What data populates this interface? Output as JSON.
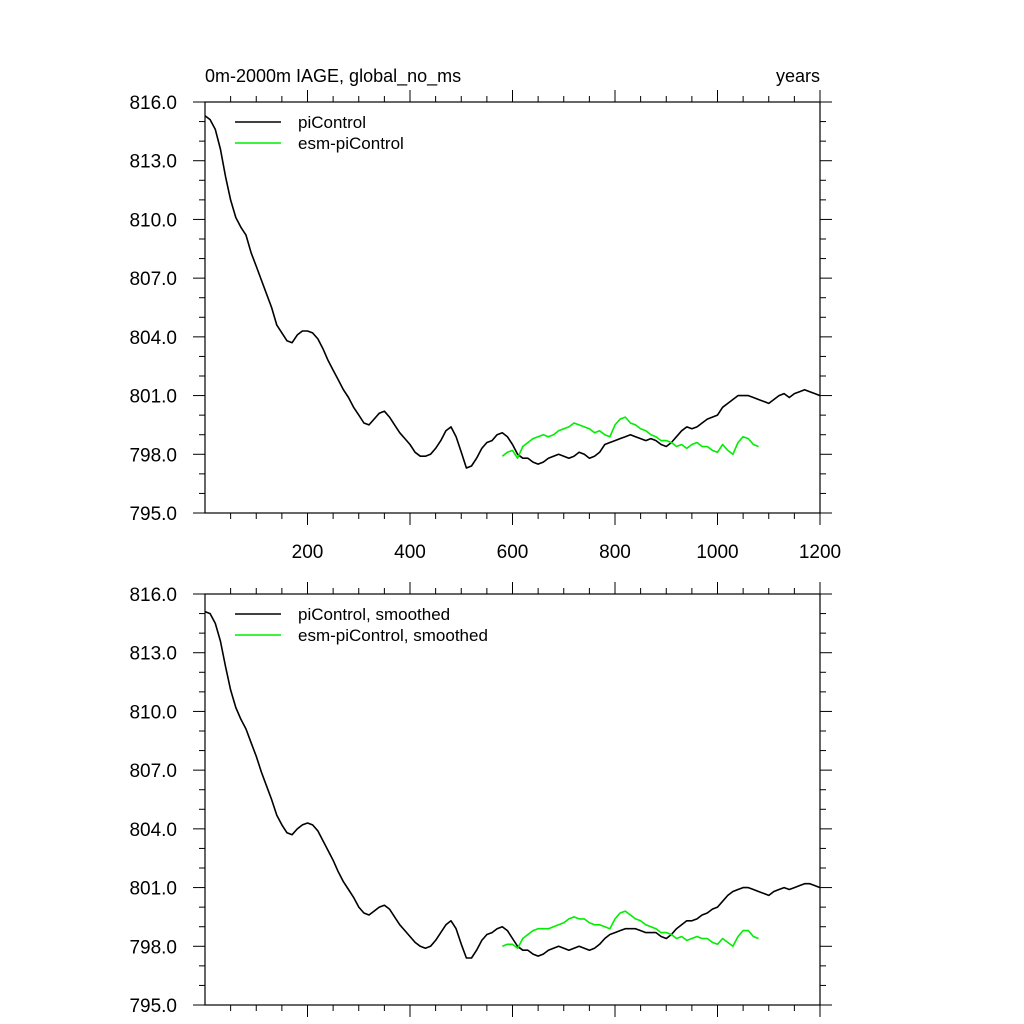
{
  "chart_data": [
    {
      "type": "line",
      "title_left": "0m-2000m IAGE, global_no_ms",
      "title_right": "years",
      "xlabel": "",
      "ylabel": "",
      "xlim": [
        0,
        1200
      ],
      "ylim": [
        795.0,
        816.0
      ],
      "yticks": [
        "816.0",
        "813.0",
        "810.0",
        "807.0",
        "804.0",
        "801.0",
        "798.0",
        "795.0"
      ],
      "xticks": [
        "200",
        "400",
        "600",
        "800",
        "1000",
        "1200"
      ],
      "legend_position": "top-left",
      "series": [
        {
          "name": "piControl",
          "color": "#000000",
          "x": [
            0,
            10,
            20,
            30,
            40,
            50,
            60,
            70,
            80,
            90,
            100,
            110,
            120,
            130,
            140,
            150,
            160,
            170,
            180,
            190,
            200,
            210,
            220,
            230,
            240,
            250,
            260,
            270,
            280,
            290,
            300,
            310,
            320,
            330,
            340,
            350,
            360,
            370,
            380,
            390,
            400,
            410,
            420,
            430,
            440,
            450,
            460,
            470,
            480,
            490,
            500,
            510,
            520,
            530,
            540,
            550,
            560,
            570,
            580,
            590,
            600,
            610,
            620,
            630,
            640,
            650,
            660,
            670,
            680,
            690,
            700,
            710,
            720,
            730,
            740,
            750,
            760,
            770,
            780,
            790,
            800,
            810,
            820,
            830,
            840,
            850,
            860,
            870,
            880,
            890,
            900,
            910,
            920,
            930,
            940,
            950,
            960,
            970,
            980,
            990,
            1000,
            1010,
            1020,
            1030,
            1040,
            1050,
            1060,
            1070,
            1080,
            1090,
            1100,
            1110,
            1120,
            1130,
            1140,
            1150,
            1160,
            1170,
            1180,
            1190,
            1200
          ],
          "values": [
            815.3,
            815.1,
            814.6,
            813.6,
            812.2,
            811.0,
            810.1,
            809.6,
            809.2,
            808.3,
            807.6,
            806.9,
            806.2,
            805.5,
            804.6,
            804.2,
            803.8,
            803.7,
            804.1,
            804.3,
            804.3,
            804.2,
            803.9,
            803.4,
            802.8,
            802.3,
            801.8,
            801.3,
            800.9,
            800.4,
            800.0,
            799.6,
            799.5,
            799.8,
            800.1,
            800.2,
            799.9,
            799.5,
            799.1,
            798.8,
            798.5,
            798.1,
            797.9,
            797.9,
            798.0,
            798.3,
            798.7,
            799.2,
            799.4,
            798.9,
            798.1,
            797.3,
            797.4,
            797.8,
            798.3,
            798.6,
            798.7,
            799.0,
            799.1,
            798.9,
            798.5,
            798.0,
            797.8,
            797.8,
            797.6,
            797.5,
            797.6,
            797.8,
            797.9,
            798.0,
            797.9,
            797.8,
            797.9,
            798.1,
            798.0,
            797.8,
            797.9,
            798.1,
            798.5,
            798.6,
            798.7,
            798.8,
            798.9,
            799.0,
            798.9,
            798.8,
            798.7,
            798.8,
            798.7,
            798.5,
            798.4,
            798.6,
            798.9,
            799.2,
            799.4,
            799.3,
            799.4,
            799.6,
            799.8,
            799.9,
            800.0,
            800.4,
            800.6,
            800.8,
            801.0,
            801.0,
            801.0,
            800.9,
            800.8,
            800.7,
            800.6,
            800.8,
            801.0,
            801.1,
            800.9,
            801.1,
            801.2,
            801.3,
            801.2,
            801.1,
            801.0
          ]
        },
        {
          "name": "esm-piControl",
          "color": "#00ee00",
          "x": [
            580,
            590,
            600,
            610,
            620,
            630,
            640,
            650,
            660,
            670,
            680,
            690,
            700,
            710,
            720,
            730,
            740,
            750,
            760,
            770,
            780,
            790,
            800,
            810,
            820,
            830,
            840,
            850,
            860,
            870,
            880,
            890,
            900,
            910,
            920,
            930,
            940,
            950,
            960,
            970,
            980,
            990,
            1000,
            1010,
            1020,
            1030,
            1040,
            1050,
            1060,
            1070,
            1080
          ],
          "values": [
            797.9,
            798.1,
            798.2,
            797.8,
            798.4,
            798.6,
            798.8,
            798.9,
            799.0,
            798.9,
            799.0,
            799.2,
            799.3,
            799.4,
            799.6,
            799.5,
            799.4,
            799.3,
            799.1,
            799.2,
            799.0,
            798.9,
            799.5,
            799.8,
            799.9,
            799.6,
            799.5,
            799.3,
            799.2,
            799.0,
            798.9,
            798.7,
            798.7,
            798.6,
            798.4,
            798.5,
            798.3,
            798.5,
            798.6,
            798.4,
            798.4,
            798.2,
            798.1,
            798.5,
            798.2,
            798.0,
            798.6,
            798.9,
            798.8,
            798.5,
            798.4
          ]
        }
      ]
    },
    {
      "type": "line",
      "title_left": "",
      "title_right": "",
      "xlabel": "",
      "ylabel": "",
      "xlim": [
        0,
        1200
      ],
      "ylim": [
        795.0,
        816.0
      ],
      "yticks": [
        "816.0",
        "813.0",
        "810.0",
        "807.0",
        "804.0",
        "801.0",
        "798.0",
        "795.0"
      ],
      "xticks": [],
      "legend_position": "top-left",
      "series": [
        {
          "name": "piControl, smoothed",
          "color": "#000000",
          "x": [
            0,
            10,
            20,
            30,
            40,
            50,
            60,
            70,
            80,
            90,
            100,
            110,
            120,
            130,
            140,
            150,
            160,
            170,
            180,
            190,
            200,
            210,
            220,
            230,
            240,
            250,
            260,
            270,
            280,
            290,
            300,
            310,
            320,
            330,
            340,
            350,
            360,
            370,
            380,
            390,
            400,
            410,
            420,
            430,
            440,
            450,
            460,
            470,
            480,
            490,
            500,
            510,
            520,
            530,
            540,
            550,
            560,
            570,
            580,
            590,
            600,
            610,
            620,
            630,
            640,
            650,
            660,
            670,
            680,
            690,
            700,
            710,
            720,
            730,
            740,
            750,
            760,
            770,
            780,
            790,
            800,
            810,
            820,
            830,
            840,
            850,
            860,
            870,
            880,
            890,
            900,
            910,
            920,
            930,
            940,
            950,
            960,
            970,
            980,
            990,
            1000,
            1010,
            1020,
            1030,
            1040,
            1050,
            1060,
            1070,
            1080,
            1090,
            1100,
            1110,
            1120,
            1130,
            1140,
            1150,
            1160,
            1170,
            1180,
            1190,
            1200
          ],
          "values": [
            815.1,
            815.0,
            814.5,
            813.6,
            812.3,
            811.1,
            810.2,
            809.6,
            809.1,
            808.4,
            807.7,
            806.9,
            806.2,
            805.5,
            804.7,
            804.2,
            803.8,
            803.7,
            804.0,
            804.2,
            804.3,
            804.2,
            803.9,
            803.4,
            802.9,
            802.4,
            801.8,
            801.3,
            800.9,
            800.5,
            800.0,
            799.7,
            799.6,
            799.8,
            800.0,
            800.1,
            799.9,
            799.5,
            799.1,
            798.8,
            798.5,
            798.2,
            798.0,
            797.9,
            798.0,
            798.3,
            798.7,
            799.1,
            799.3,
            798.9,
            798.1,
            797.4,
            797.4,
            797.8,
            798.3,
            798.6,
            798.7,
            798.9,
            799.0,
            798.8,
            798.4,
            798.0,
            797.8,
            797.8,
            797.6,
            797.5,
            797.6,
            797.8,
            797.9,
            798.0,
            797.9,
            797.8,
            797.9,
            798.0,
            797.9,
            797.8,
            797.9,
            798.1,
            798.4,
            798.6,
            798.7,
            798.8,
            798.9,
            798.9,
            798.9,
            798.8,
            798.7,
            798.7,
            798.7,
            798.5,
            798.4,
            798.6,
            798.9,
            799.1,
            799.3,
            799.3,
            799.4,
            799.6,
            799.7,
            799.9,
            800.0,
            800.3,
            800.6,
            800.8,
            800.9,
            801.0,
            801.0,
            800.9,
            800.8,
            800.7,
            800.6,
            800.8,
            800.9,
            801.0,
            800.9,
            801.0,
            801.1,
            801.2,
            801.2,
            801.1,
            801.0
          ]
        },
        {
          "name": "esm-piControl, smoothed",
          "color": "#00ee00",
          "x": [
            580,
            590,
            600,
            610,
            620,
            630,
            640,
            650,
            660,
            670,
            680,
            690,
            700,
            710,
            720,
            730,
            740,
            750,
            760,
            770,
            780,
            790,
            800,
            810,
            820,
            830,
            840,
            850,
            860,
            870,
            880,
            890,
            900,
            910,
            920,
            930,
            940,
            950,
            960,
            970,
            980,
            990,
            1000,
            1010,
            1020,
            1030,
            1040,
            1050,
            1060,
            1070,
            1080
          ],
          "values": [
            798.0,
            798.1,
            798.1,
            797.9,
            798.4,
            798.6,
            798.8,
            798.9,
            798.9,
            798.9,
            799.0,
            799.1,
            799.2,
            799.4,
            799.5,
            799.4,
            799.4,
            799.2,
            799.1,
            799.1,
            799.0,
            798.9,
            799.4,
            799.7,
            799.8,
            799.6,
            799.4,
            799.3,
            799.1,
            799.0,
            798.9,
            798.7,
            798.7,
            798.6,
            798.4,
            798.5,
            798.3,
            798.4,
            798.5,
            798.4,
            798.4,
            798.2,
            798.1,
            798.4,
            798.2,
            798.0,
            798.5,
            798.8,
            798.8,
            798.5,
            798.4
          ]
        }
      ]
    }
  ]
}
